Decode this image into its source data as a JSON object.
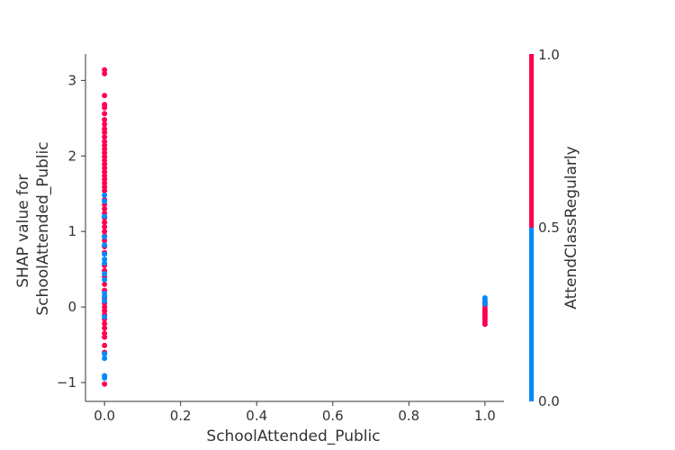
{
  "chart_data": {
    "type": "scatter",
    "title": "",
    "xlabel": "SchoolAttended_Public",
    "ylabel_lines": [
      "SHAP value for",
      "SchoolAttended_Public"
    ],
    "xlim": [
      -0.05,
      1.05
    ],
    "ylim": [
      -1.25,
      3.35
    ],
    "xticks": [
      0.0,
      0.2,
      0.4,
      0.6,
      0.8,
      1.0
    ],
    "xtick_labels": [
      "0.0",
      "0.2",
      "0.4",
      "0.6",
      "0.8",
      "1.0"
    ],
    "yticks": [
      -1,
      0,
      1,
      2,
      3
    ],
    "ytick_labels": [
      "−1",
      "0",
      "1",
      "2",
      "3"
    ],
    "grid": false,
    "colorbar": {
      "label": "AttendClassRegularly",
      "tick_labels": [
        "0.0",
        "0.5",
        "1.0"
      ],
      "tick_values": [
        0.0,
        0.5,
        1.0
      ],
      "low_color": "#008bfb",
      "high_color": "#ff0051"
    },
    "series": [
      {
        "color_value": 1.0,
        "points": [
          [
            0.0,
            3.14
          ],
          [
            0.0,
            3.09
          ],
          [
            0.0,
            2.8
          ],
          [
            0.0,
            2.68
          ],
          [
            0.0,
            2.64
          ],
          [
            0.0,
            2.56
          ],
          [
            0.0,
            2.48
          ],
          [
            0.0,
            2.42
          ],
          [
            0.0,
            2.36
          ],
          [
            0.0,
            2.31
          ],
          [
            0.0,
            2.25
          ],
          [
            0.0,
            2.19
          ],
          [
            0.0,
            2.14
          ],
          [
            0.0,
            2.09
          ],
          [
            0.0,
            2.04
          ],
          [
            0.0,
            1.99
          ],
          [
            0.0,
            1.94
          ],
          [
            0.0,
            1.89
          ],
          [
            0.0,
            1.84
          ],
          [
            0.0,
            1.79
          ],
          [
            0.0,
            1.74
          ],
          [
            0.0,
            1.69
          ],
          [
            0.0,
            1.64
          ],
          [
            0.0,
            1.59
          ],
          [
            0.0,
            1.54
          ],
          [
            0.0,
            1.42
          ],
          [
            0.0,
            1.36
          ],
          [
            0.0,
            1.3
          ],
          [
            0.0,
            1.24
          ],
          [
            0.0,
            1.18
          ],
          [
            0.0,
            1.12
          ],
          [
            0.0,
            1.06
          ],
          [
            0.0,
            1.0
          ],
          [
            0.0,
            0.94
          ],
          [
            0.0,
            0.88
          ],
          [
            0.0,
            0.8
          ],
          [
            0.0,
            0.72
          ],
          [
            0.0,
            0.55
          ],
          [
            0.0,
            0.48
          ],
          [
            0.0,
            0.4
          ],
          [
            0.0,
            0.3
          ],
          [
            0.0,
            0.22
          ],
          [
            0.0,
            0.12
          ],
          [
            0.0,
            0.05
          ],
          [
            0.0,
            0.0
          ],
          [
            0.0,
            -0.05
          ],
          [
            0.0,
            -0.1
          ],
          [
            0.0,
            -0.16
          ],
          [
            0.0,
            -0.22
          ],
          [
            0.0,
            -0.28
          ],
          [
            0.0,
            -0.35
          ],
          [
            0.0,
            -0.4
          ],
          [
            0.0,
            -0.51
          ],
          [
            0.0,
            -0.6
          ],
          [
            0.0,
            -1.02
          ],
          [
            1.0,
            0.06
          ],
          [
            1.0,
            0.02
          ],
          [
            1.0,
            -0.02
          ],
          [
            1.0,
            -0.05
          ],
          [
            1.0,
            -0.08
          ],
          [
            1.0,
            -0.11
          ],
          [
            1.0,
            -0.14
          ],
          [
            1.0,
            -0.17
          ],
          [
            1.0,
            -0.2
          ],
          [
            1.0,
            -0.23
          ]
        ]
      },
      {
        "color_value": 0.0,
        "points": [
          [
            0.0,
            1.48
          ],
          [
            0.0,
            1.4
          ],
          [
            0.0,
            1.2
          ],
          [
            0.0,
            0.93
          ],
          [
            0.0,
            0.82
          ],
          [
            0.0,
            0.7
          ],
          [
            0.0,
            0.63
          ],
          [
            0.0,
            0.58
          ],
          [
            0.0,
            0.44
          ],
          [
            0.0,
            0.36
          ],
          [
            0.0,
            0.18
          ],
          [
            0.0,
            0.14
          ],
          [
            0.0,
            0.08
          ],
          [
            0.0,
            -0.13
          ],
          [
            0.0,
            -0.62
          ],
          [
            0.0,
            -0.68
          ],
          [
            0.0,
            -0.91
          ],
          [
            0.0,
            -0.94
          ],
          [
            1.0,
            0.12
          ],
          [
            1.0,
            0.09
          ],
          [
            1.0,
            0.04
          ]
        ]
      }
    ]
  }
}
